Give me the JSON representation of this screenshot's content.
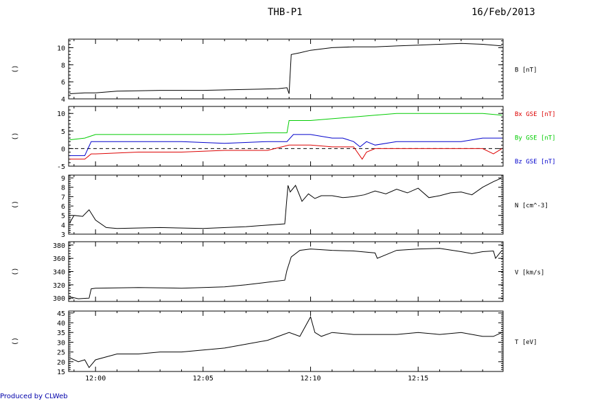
{
  "header": {
    "title": "THB-P1",
    "date": "16/Feb/2013"
  },
  "footer": {
    "credit": "Produced by CLWeb"
  },
  "colors": {
    "black": "#000000",
    "red": "#dd0000",
    "green": "#00cc00",
    "blue": "#0000cc"
  },
  "chart_data": [
    {
      "type": "line",
      "panel_label": "()",
      "x_ticks": [
        "12:00",
        "12:05",
        "12:10",
        "12:15"
      ],
      "yticks": [
        4,
        6,
        8,
        10
      ],
      "ylim": [
        4,
        11
      ],
      "series": [
        {
          "name": "B [nT]",
          "color": "#000000",
          "x": [
            -1.2,
            -0.5,
            0,
            1,
            3,
            5,
            7,
            8.5,
            8.9,
            9.0,
            9.1,
            9.5,
            10,
            11,
            12,
            13,
            14,
            15,
            16,
            17,
            18,
            18.9
          ],
          "y": [
            4.6,
            4.7,
            4.7,
            4.9,
            5.0,
            5.0,
            5.1,
            5.2,
            5.3,
            4.6,
            9.2,
            9.4,
            9.7,
            10.0,
            10.1,
            10.1,
            10.2,
            10.3,
            10.4,
            10.5,
            10.4,
            10.2
          ]
        }
      ]
    },
    {
      "type": "line",
      "panel_label": "()",
      "x_ticks": [
        "12:00",
        "12:05",
        "12:10",
        "12:15"
      ],
      "yticks": [
        -5,
        0,
        5,
        10
      ],
      "ylim": [
        -5,
        12
      ],
      "zero_line": true,
      "series": [
        {
          "name": "Bx GSE [nT]",
          "color": "#dd0000",
          "x": [
            -1.2,
            -0.5,
            -0.2,
            0,
            2,
            4,
            6,
            8,
            9.0,
            10,
            11,
            12,
            12.4,
            12.6,
            13,
            14,
            15,
            16,
            17,
            18,
            18.5,
            18.9
          ],
          "y": [
            -3,
            -3,
            -1.5,
            -1.5,
            -1,
            -1,
            -0.5,
            -0.5,
            1,
            1,
            0.5,
            0.5,
            -3,
            -1,
            0,
            0,
            0,
            0,
            0,
            0,
            -1.5,
            0
          ]
        },
        {
          "name": "By GSE [nT]",
          "color": "#00cc00",
          "x": [
            -1.2,
            -0.5,
            0,
            2,
            4,
            6,
            8,
            8.9,
            9.0,
            10,
            11,
            12,
            13,
            14,
            15,
            16,
            17,
            18,
            18.9
          ],
          "y": [
            2.5,
            3,
            4,
            4,
            4,
            4,
            4.5,
            4.5,
            8,
            8,
            8.5,
            9,
            9.5,
            10,
            10,
            10,
            10,
            10,
            9.5
          ]
        },
        {
          "name": "Bz GSE [nT]",
          "color": "#0000cc",
          "x": [
            -1.2,
            -0.5,
            -0.2,
            0,
            2,
            4,
            6,
            8,
            8.9,
            9.2,
            10,
            11,
            11.5,
            12,
            12.3,
            12.6,
            13,
            14,
            15,
            16,
            17,
            18,
            18.9
          ],
          "y": [
            -2,
            -2,
            2,
            2,
            2,
            2,
            1.5,
            2,
            2,
            4,
            4,
            3,
            3,
            2,
            0.5,
            2,
            1,
            2,
            2,
            2,
            2,
            3,
            3
          ]
        }
      ]
    },
    {
      "type": "line",
      "panel_label": "()",
      "x_ticks": [
        "12:00",
        "12:05",
        "12:10",
        "12:15"
      ],
      "yticks": [
        3,
        4,
        5,
        6,
        7,
        8,
        9
      ],
      "ylim": [
        3,
        9.3
      ],
      "series": [
        {
          "name": "N [cm^-3]",
          "color": "#000000",
          "x": [
            -1.2,
            -1,
            -0.6,
            -0.3,
            0,
            0.5,
            1,
            3,
            5,
            7,
            8.8,
            8.95,
            9.05,
            9.3,
            9.6,
            9.9,
            10.2,
            10.5,
            11,
            11.5,
            12,
            12.5,
            13,
            13.5,
            14,
            14.5,
            15,
            15.5,
            16,
            16.5,
            17,
            17.5,
            18,
            18.5,
            18.9
          ],
          "y": [
            4.2,
            5.0,
            4.9,
            5.6,
            4.5,
            3.7,
            3.6,
            3.7,
            3.6,
            3.8,
            4.1,
            8.2,
            7.5,
            8.2,
            6.5,
            7.3,
            6.8,
            7.1,
            7.1,
            6.9,
            7.0,
            7.2,
            7.6,
            7.3,
            7.8,
            7.4,
            7.9,
            6.9,
            7.1,
            7.4,
            7.5,
            7.2,
            8.0,
            8.6,
            9.0
          ]
        }
      ]
    },
    {
      "type": "line",
      "panel_label": "()",
      "x_ticks": [
        "12:00",
        "12:05",
        "12:10",
        "12:15"
      ],
      "yticks": [
        300,
        320,
        340,
        360,
        380
      ],
      "ylim": [
        295,
        385
      ],
      "series": [
        {
          "name": "V [km/s]",
          "color": "#000000",
          "x": [
            -1.2,
            -0.8,
            -0.3,
            -0.2,
            0,
            2,
            4,
            6,
            7,
            8,
            8.8,
            8.9,
            9.1,
            9.5,
            10,
            11,
            12,
            13,
            13.1,
            14,
            15,
            16,
            17,
            17.5,
            18,
            18.5,
            18.6,
            18.9
          ],
          "y": [
            302,
            299,
            300,
            314,
            315,
            316,
            315,
            317,
            320,
            324,
            327,
            342,
            362,
            372,
            374,
            372,
            371,
            368,
            360,
            372,
            374,
            375,
            370,
            367,
            370,
            371,
            360,
            372
          ]
        }
      ]
    },
    {
      "type": "line",
      "panel_label": "()",
      "x_ticks": [
        "12:00",
        "12:05",
        "12:10",
        "12:15"
      ],
      "yticks": [
        15,
        20,
        25,
        30,
        35,
        40,
        45
      ],
      "ylim": [
        15,
        46
      ],
      "series": [
        {
          "name": "T [eV]",
          "color": "#000000",
          "x": [
            -1.2,
            -0.8,
            -0.5,
            -0.3,
            0,
            1,
            2,
            3,
            4,
            5,
            6,
            7,
            8,
            8.5,
            9,
            9.5,
            10,
            10.2,
            10.5,
            11,
            12,
            13,
            14,
            15,
            16,
            17,
            18,
            18.5,
            18.9
          ],
          "y": [
            22,
            20,
            21,
            17,
            21,
            24,
            24,
            25,
            25,
            26,
            27,
            29,
            31,
            33,
            35,
            33,
            43,
            35,
            33,
            35,
            34,
            34,
            34,
            35,
            34,
            35,
            33,
            33,
            35
          ]
        }
      ]
    }
  ]
}
